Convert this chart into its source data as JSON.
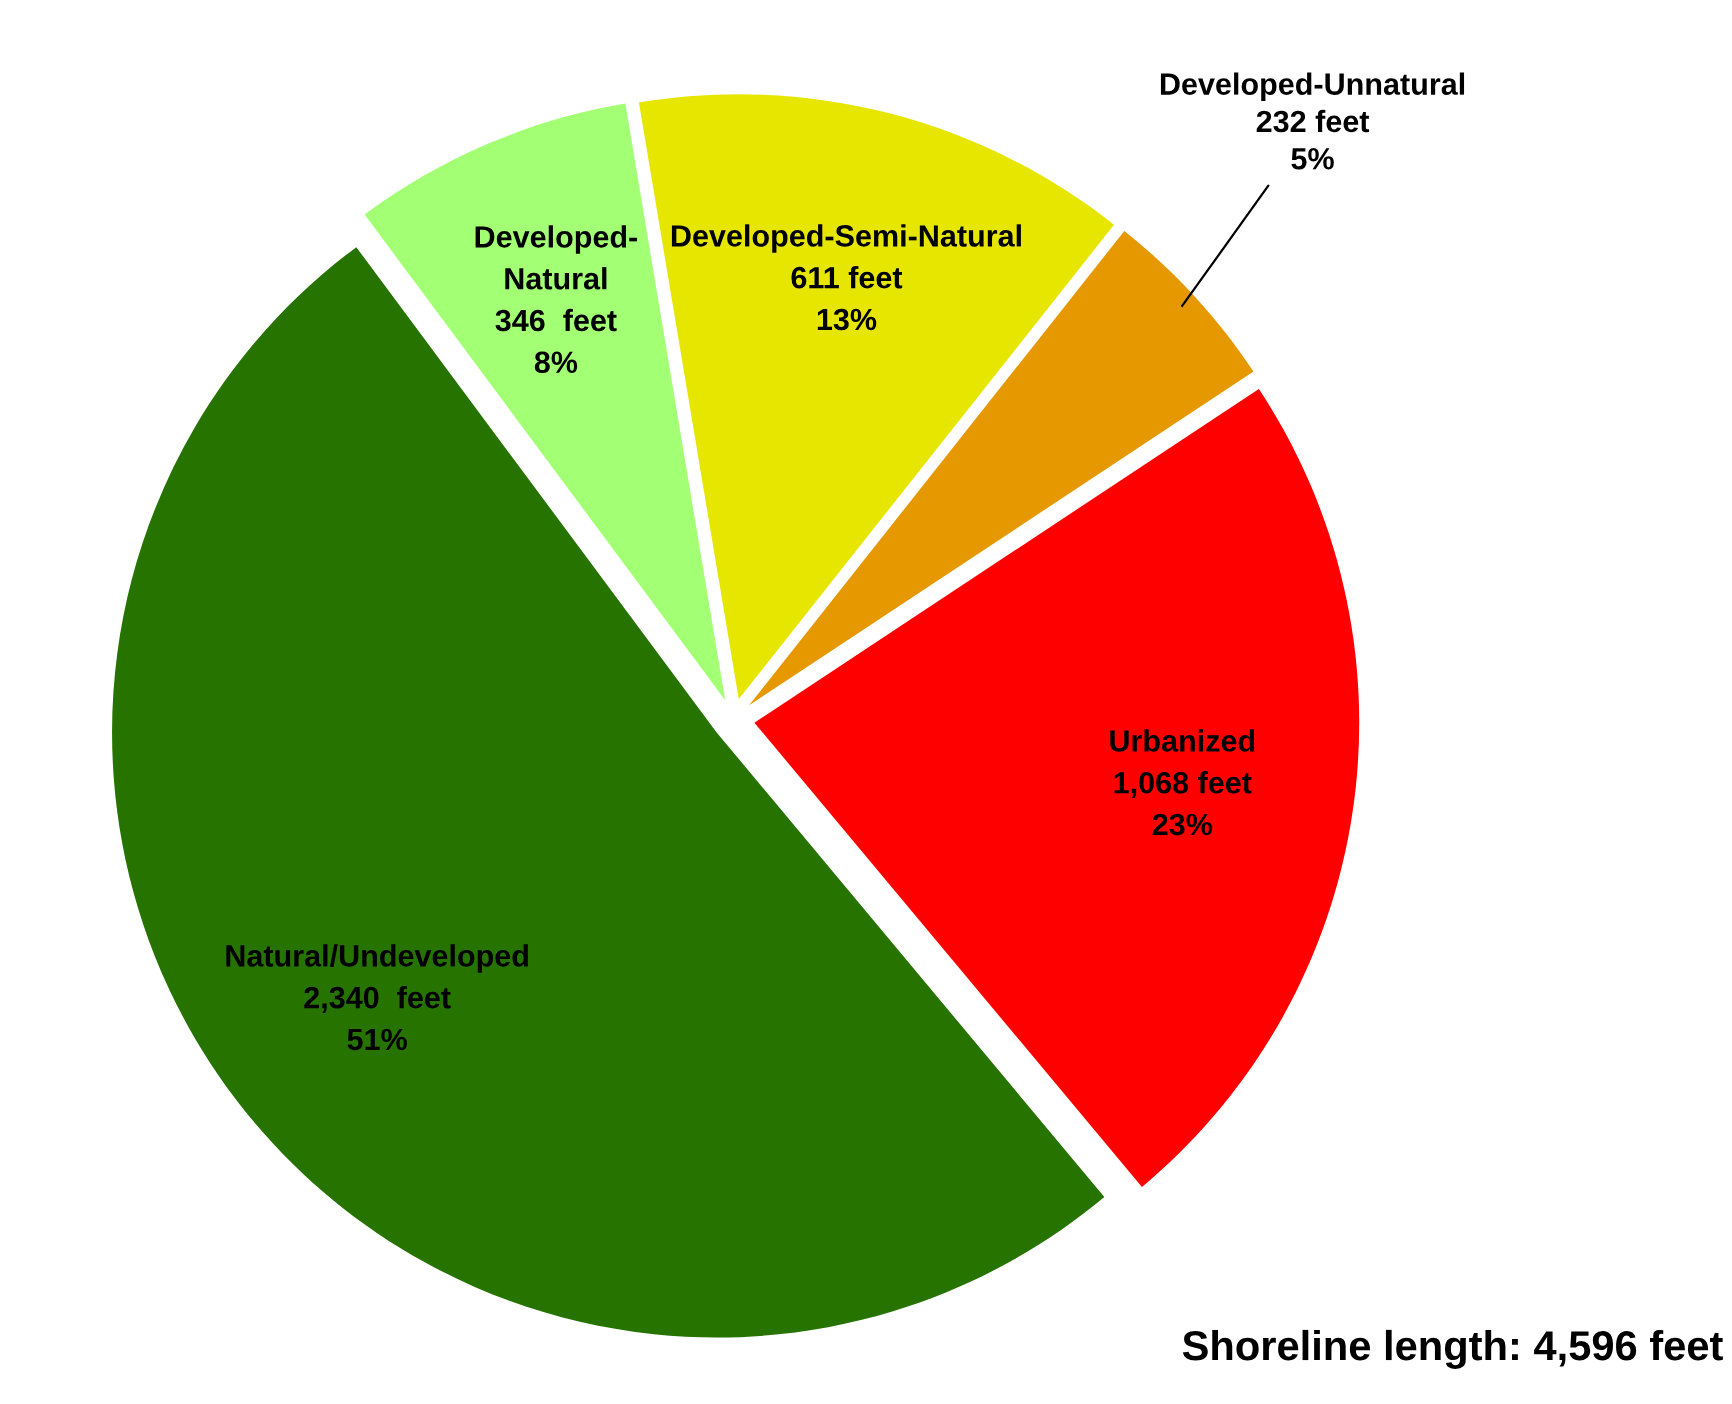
{
  "chart_data": {
    "type": "pie",
    "categories": [
      "Developed-Semi-Natural",
      "Developed-Unnatural",
      "Urbanized",
      "Natural/Undeveloped",
      "Developed-\nNatural"
    ],
    "values": [
      611,
      232,
      1068,
      2340,
      346
    ],
    "value_labels": [
      "611 feet\n13%",
      "232 feet\n5%",
      "1,068 feet\n23%",
      "2,340  feet\n51%",
      "346  feet\n8%"
    ],
    "colors": [
      "#e6e600",
      "#e69800",
      "#ff0000",
      "#267300",
      "#a3ff73"
    ],
    "annotations": [
      "Shoreline length: 4,596 feet"
    ]
  }
}
